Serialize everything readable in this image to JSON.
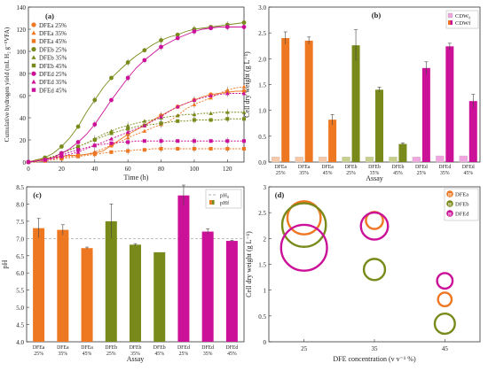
{
  "colors": {
    "DFEa": "#ee7722",
    "DFEb": "#7a8a1a",
    "DFEd": "#cc1199",
    "DFEa_light": "#f7c9a8",
    "DFEb_light": "#c7cf8a",
    "DFEd_light": "#f0a6df"
  },
  "chart_data": [
    {
      "id": "a",
      "panel_label": "(a)",
      "type": "scatter",
      "xlabel": "Time (h)",
      "ylabel": "Cumulative hydrogen yield (mL H₂ g⁻¹VFA)",
      "xlim": [
        0,
        130
      ],
      "ylim": [
        0,
        140
      ],
      "xticks": [
        "0",
        "20",
        "40",
        "60",
        "80",
        "100",
        "120"
      ],
      "yticks": [
        "0",
        "20",
        "40",
        "60",
        "80",
        "100",
        "120",
        "140"
      ],
      "legend_position": "top-left",
      "x": [
        0,
        5,
        10,
        15,
        20,
        25,
        30,
        35,
        40,
        45,
        50,
        55,
        60,
        65,
        70,
        75,
        80,
        85,
        90,
        95,
        100,
        105,
        110,
        115,
        120,
        125,
        130
      ],
      "series": [
        {
          "name": "DFEa 25%",
          "color_key": "DFEa",
          "marker": "circle",
          "values": [
            0,
            2,
            3,
            4,
            5,
            6,
            6,
            7,
            8,
            10,
            15,
            20,
            25,
            29,
            33,
            38,
            42,
            46,
            50,
            53,
            56,
            59,
            61,
            62,
            63,
            64,
            64
          ]
        },
        {
          "name": "DFEa 35%",
          "color_key": "DFEa",
          "marker": "triangle",
          "values": [
            0,
            1,
            2,
            3,
            4,
            5,
            6,
            7,
            9,
            12,
            15,
            18,
            22,
            25,
            28,
            31,
            34,
            37,
            42,
            48,
            52,
            55,
            58,
            62,
            65,
            67,
            68
          ]
        },
        {
          "name": "DFEa 45%",
          "color_key": "DFEa",
          "marker": "square",
          "values": [
            0,
            0,
            1,
            2,
            3,
            4,
            5,
            6,
            7,
            8,
            9,
            10,
            10,
            11,
            11,
            12,
            12,
            12,
            12,
            12,
            12,
            12,
            12,
            12,
            12,
            12,
            12
          ]
        },
        {
          "name": "DFEb 25%",
          "color_key": "DFEb",
          "marker": "circle",
          "values": [
            0,
            2,
            4,
            8,
            14,
            22,
            32,
            45,
            56,
            67,
            76,
            83,
            90,
            96,
            101,
            106,
            110,
            113,
            115,
            118,
            120,
            121,
            122,
            123,
            124,
            125,
            126
          ]
        },
        {
          "name": "DFEb 35%",
          "color_key": "DFEb",
          "marker": "triangle",
          "values": [
            0,
            1,
            3,
            5,
            8,
            11,
            14,
            17,
            21,
            25,
            28,
            31,
            33,
            35,
            37,
            38,
            40,
            41,
            42,
            43,
            43,
            44,
            44,
            45,
            45,
            45,
            45
          ]
        },
        {
          "name": "DFEb 45%",
          "color_key": "DFEb",
          "marker": "square",
          "values": [
            0,
            1,
            3,
            5,
            8,
            11,
            14,
            17,
            20,
            23,
            26,
            28,
            30,
            32,
            33,
            34,
            35,
            36,
            37,
            37,
            38,
            38,
            38,
            38,
            39,
            39,
            39
          ]
        },
        {
          "name": "DFEd 25%",
          "color_key": "DFEd",
          "marker": "circle",
          "values": [
            0,
            1,
            2,
            4,
            8,
            12,
            18,
            25,
            34,
            45,
            56,
            66,
            76,
            85,
            92,
            98,
            104,
            108,
            112,
            115,
            118,
            120,
            121,
            122,
            122,
            122,
            122
          ]
        },
        {
          "name": "DFEd 35%",
          "color_key": "DFEd",
          "marker": "triangle",
          "values": [
            0,
            1,
            2,
            3,
            5,
            7,
            9,
            12,
            15,
            18,
            21,
            24,
            27,
            30,
            33,
            37,
            41,
            46,
            50,
            53,
            56,
            58,
            60,
            61,
            62,
            62,
            62
          ]
        },
        {
          "name": "DFEd 45%",
          "color_key": "DFEd",
          "marker": "square",
          "values": [
            0,
            1,
            2,
            4,
            6,
            9,
            11,
            13,
            15,
            16,
            17,
            18,
            18,
            19,
            19,
            19,
            19,
            19,
            19,
            19,
            19,
            19,
            19,
            19,
            19,
            19,
            19
          ]
        }
      ]
    },
    {
      "id": "b",
      "panel_label": "(b)",
      "type": "bar",
      "xlabel": "Assay",
      "ylabel": "Cell dry weight (g L⁻¹)",
      "ylim": [
        0,
        3.0
      ],
      "yticks": [
        "0.0",
        "0.5",
        "1.0",
        "1.5",
        "2.0",
        "2.5",
        "3.0"
      ],
      "legend_position": "top-right",
      "categories": [
        {
          "name": "DFEa",
          "pct": "25%",
          "color_key": "DFEa"
        },
        {
          "name": "DFEa",
          "pct": "35%",
          "color_key": "DFEa"
        },
        {
          "name": "DFEa",
          "pct": "45%",
          "color_key": "DFEa"
        },
        {
          "name": "DFEb",
          "pct": "25%",
          "color_key": "DFEb"
        },
        {
          "name": "DFEb",
          "pct": "35%",
          "color_key": "DFEb"
        },
        {
          "name": "DFEb",
          "pct": "45%",
          "color_key": "DFEb"
        },
        {
          "name": "DFEd",
          "pct": "25%",
          "color_key": "DFEd"
        },
        {
          "name": "DFEd",
          "pct": "35%",
          "color_key": "DFEd"
        },
        {
          "name": "DFEd",
          "pct": "45%",
          "color_key": "DFEd"
        }
      ],
      "series": [
        {
          "name": "CDW₀",
          "values": [
            0.1,
            0.1,
            0.1,
            0.1,
            0.1,
            0.1,
            0.1,
            0.12,
            0.12
          ],
          "errors": [
            0.02,
            0.02,
            0.02,
            0.02,
            0.02,
            0.02,
            0.02,
            0.02,
            0.02
          ]
        },
        {
          "name": "CDWf",
          "values": [
            2.4,
            2.35,
            0.82,
            2.26,
            1.4,
            0.35,
            1.82,
            2.24,
            1.18
          ],
          "errors": [
            0.12,
            0.07,
            0.1,
            0.3,
            0.05,
            0.02,
            0.12,
            0.06,
            0.13
          ]
        }
      ]
    },
    {
      "id": "c",
      "panel_label": "(c)",
      "type": "bar",
      "xlabel": "Assay",
      "ylabel": "pH",
      "ylim": [
        4.0,
        8.5
      ],
      "yticks": [
        "4.0",
        "4.5",
        "5.0",
        "5.5",
        "6.0",
        "6.5",
        "7.0",
        "7.5",
        "8.0",
        "8.5"
      ],
      "legend_position": "top-right",
      "reference_line": {
        "name": "pH₀",
        "value": 7.0
      },
      "bar_series_name": "pHf",
      "categories": [
        {
          "name": "DFEa",
          "pct": "25%",
          "color_key": "DFEa"
        },
        {
          "name": "DFEa",
          "pct": "35%",
          "color_key": "DFEa"
        },
        {
          "name": "DFEa",
          "pct": "45%",
          "color_key": "DFEa"
        },
        {
          "name": "DFEb",
          "pct": "25%",
          "color_key": "DFEb"
        },
        {
          "name": "DFEb",
          "pct": "35%",
          "color_key": "DFEb"
        },
        {
          "name": "DFEb",
          "pct": "45%",
          "color_key": "DFEb"
        },
        {
          "name": "DFEd",
          "pct": "25%",
          "color_key": "DFEd"
        },
        {
          "name": "DFEd",
          "pct": "35%",
          "color_key": "DFEd"
        },
        {
          "name": "DFEd",
          "pct": "45%",
          "color_key": "DFEd"
        }
      ],
      "values": [
        7.3,
        7.25,
        6.72,
        7.5,
        6.82,
        6.6,
        8.25,
        7.2,
        6.93
      ],
      "errors": [
        0.28,
        0.15,
        0.03,
        0.5,
        0.03,
        0.0,
        0.3,
        0.08,
        0.02
      ]
    },
    {
      "id": "d",
      "panel_label": "(d)",
      "type": "scatter",
      "xlabel": "DFE concentration (v v⁻¹ %)",
      "ylabel": "Cell dry weight (g L⁻¹)",
      "xlim": [
        20,
        50
      ],
      "ylim": [
        0,
        3.0
      ],
      "xticks": [
        "25",
        "35",
        "45"
      ],
      "yticks": [
        "0",
        "0.5",
        "1",
        "1.5",
        "2",
        "2.5",
        "3"
      ],
      "legend_position": "top-right",
      "series": [
        {
          "name": "DFEa",
          "badge": "H",
          "color_key": "DFEa",
          "points": [
            {
              "x": 25,
              "y": 2.4,
              "size": 2.4
            },
            {
              "x": 35,
              "y": 2.35,
              "size": 0.35
            },
            {
              "x": 45,
              "y": 0.82,
              "size": 0.15
            }
          ]
        },
        {
          "name": "DFEb",
          "badge": "H",
          "color_key": "DFEb",
          "points": [
            {
              "x": 25,
              "y": 2.26,
              "size": 4.7
            },
            {
              "x": 35,
              "y": 1.4,
              "size": 0.7
            },
            {
              "x": 45,
              "y": 0.35,
              "size": 0.6
            }
          ]
        },
        {
          "name": "DFEd",
          "badge": "H",
          "color_key": "DFEd",
          "points": [
            {
              "x": 25,
              "y": 1.82,
              "size": 5.3
            },
            {
              "x": 35,
              "y": 2.24,
              "size": 1.4
            },
            {
              "x": 45,
              "y": 1.18,
              "size": 0.25
            }
          ]
        }
      ]
    }
  ]
}
